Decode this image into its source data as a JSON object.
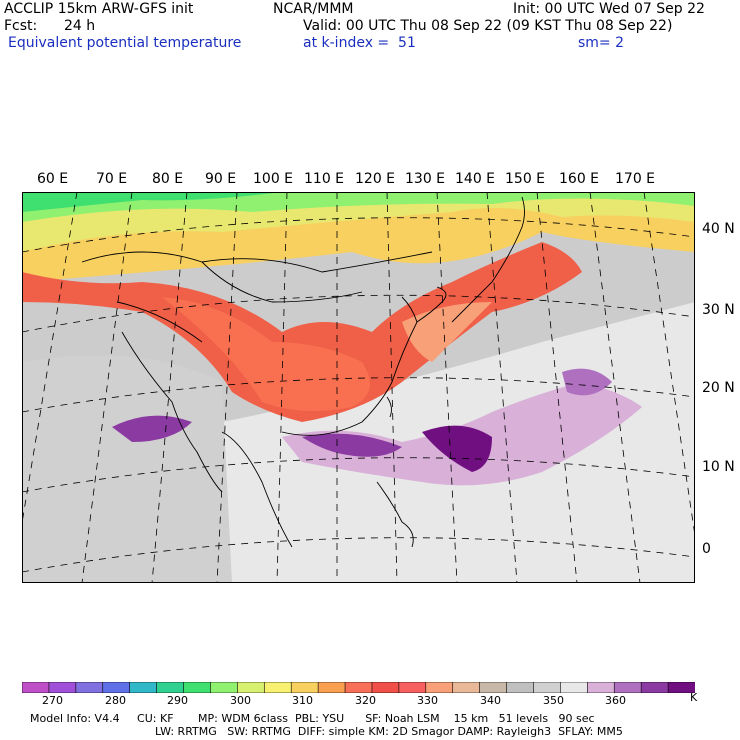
{
  "header": {
    "model": "ACCLIP 15km ARW-GFS init",
    "org": "NCAR/MMM",
    "init": "Init: 00 UTC Wed 07 Sep 22",
    "fcst_label": "Fcst:",
    "fcst_value": "24 h",
    "valid": "Valid: 00 UTC Thu 08 Sep 22 (09 KST Thu 08 Sep 22)",
    "field": "Equivalent potential temperature",
    "level": "at k-index =  51",
    "smooth": "sm= 2"
  },
  "map": {
    "lon_labels": [
      "60 E",
      "70 E",
      "80 E",
      "90 E",
      "100 E",
      "110 E",
      "120 E",
      "130 E",
      "140 E",
      "150 E",
      "160 E",
      "170 E"
    ],
    "lat_labels": [
      "40 N",
      "30 N",
      "20 N",
      "10 N",
      "0"
    ]
  },
  "colorbar": {
    "colors": [
      "#c050c8",
      "#a050d8",
      "#8070e0",
      "#6070e8",
      "#30b8c8",
      "#30d090",
      "#40e070",
      "#90f070",
      "#d8f070",
      "#f8f070",
      "#f8d060",
      "#f8a050",
      "#f87058",
      "#f05048",
      "#f86060",
      "#f8a078",
      "#e8b898",
      "#c8b8a8",
      "#c0c0c0",
      "#d0d0d0",
      "#e8e8e8",
      "#d8b0d8",
      "#b070c0",
      "#8a3aa0",
      "#701080"
    ],
    "labels": [
      "270",
      "280",
      "290",
      "300",
      "310",
      "320",
      "330",
      "340",
      "350",
      "360"
    ],
    "unit": "K"
  },
  "footer": {
    "line1": "Model Info: V4.4     CU: KF       MP: WDM 6class  PBL: YSU      SF: Noah LSM    15 km   51 levels   90 sec",
    "line2": "LW: RRTMG   SW: RRTMG  DIFF: simple KM: 2D Smagor DAMP: Rayleigh3  SFLAY: MM5"
  }
}
